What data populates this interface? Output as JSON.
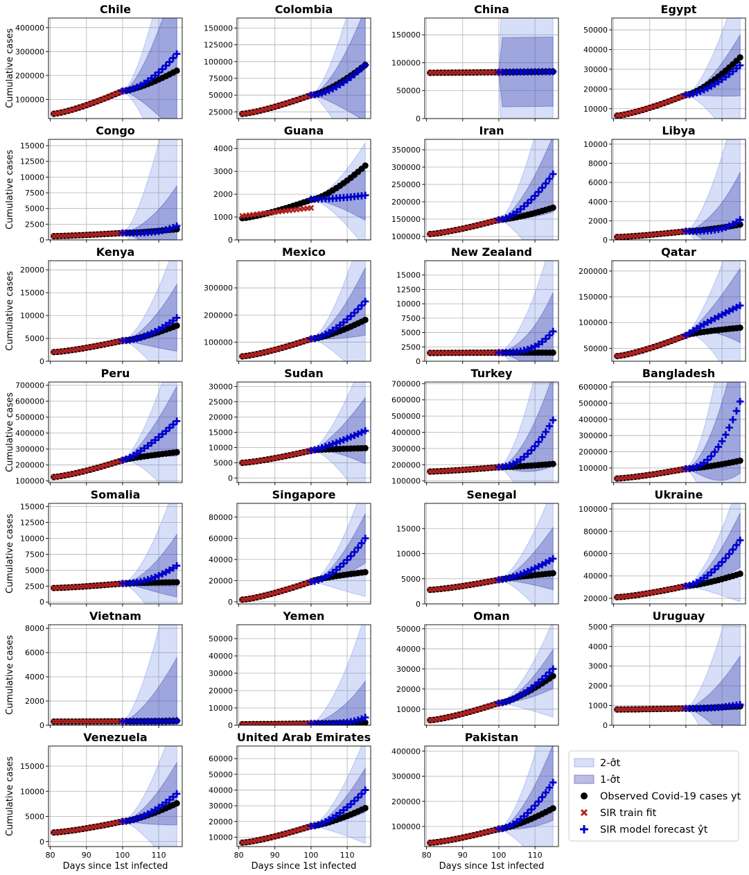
{
  "figure": {
    "ylabel": "Cumulative cases",
    "xlabel": "Days since 1st infected",
    "legend": {
      "placement": "bottom-right",
      "items": [
        {
          "key": "band2",
          "label": "2-σ̂t"
        },
        {
          "key": "band1",
          "label": "1-σ̂t"
        },
        {
          "key": "observed",
          "label": "Observed Covid-19 cases yt"
        },
        {
          "key": "train",
          "label": "SIR train fit"
        },
        {
          "key": "forecast",
          "label": "SIR model forecast ŷt"
        }
      ]
    },
    "colors": {
      "observed": "#000000",
      "train": "#b22222",
      "forecast": "#0000cd",
      "band1": "#2b33a6",
      "band2": "#6a8ae6"
    },
    "grid": true
  },
  "chart_data": [
    {
      "type": "line",
      "title": "Chile",
      "xlim": [
        79.5,
        116.5
      ],
      "ylim": [
        20000,
        440000
      ],
      "yticks": [
        100000,
        200000,
        300000,
        400000
      ],
      "xticks": [
        80,
        90,
        100,
        110
      ],
      "train_end": 100,
      "obs_start": 40000,
      "obs_mid": 135000,
      "obs_end": 220000,
      "fc_end": 290000,
      "b1": [
        200000,
        440000
      ],
      "b2": [
        290000,
        610000
      ],
      "curve": 1.7
    },
    {
      "type": "line",
      "title": "Colombia",
      "xlim": [
        79.5,
        116.5
      ],
      "ylim": [
        15000,
        165000
      ],
      "yticks": [
        25000,
        50000,
        75000,
        100000,
        125000,
        150000
      ],
      "xticks": [
        80,
        90,
        100,
        110
      ],
      "train_end": 100,
      "obs_start": 22000,
      "obs_mid": 50000,
      "obs_end": 95000,
      "fc_end": 95000,
      "b1": [
        40000,
        120000
      ],
      "b2": [
        60000,
        180000
      ],
      "curve": 1.7
    },
    {
      "type": "line",
      "title": "China",
      "xlim": [
        79.5,
        116.5
      ],
      "ylim": [
        0,
        180000
      ],
      "yticks": [
        0,
        50000,
        100000,
        150000
      ],
      "xticks": [
        80,
        90,
        100,
        110
      ],
      "train_end": 100,
      "obs_start": 82000,
      "obs_mid": 83000,
      "obs_end": 84000,
      "fc_end": 84000,
      "b1": [
        40000,
        80000
      ],
      "b2": [
        85000,
        170000
      ],
      "curve": 1.0,
      "flat_band": true
    },
    {
      "type": "line",
      "title": "Egypt",
      "xlim": [
        79.5,
        116.5
      ],
      "ylim": [
        5000,
        56000
      ],
      "yticks": [
        10000,
        20000,
        30000,
        40000,
        50000
      ],
      "xticks": [
        80,
        90,
        100,
        110
      ],
      "train_end": 100,
      "obs_start": 6500,
      "obs_mid": 17000,
      "obs_end": 36000,
      "fc_end": 32000,
      "b1": [
        10000,
        20000
      ],
      "b2": [
        20000,
        44000
      ],
      "curve": 1.6
    },
    {
      "type": "line",
      "title": "Congo",
      "xlim": [
        79.5,
        116.5
      ],
      "ylim": [
        0,
        16000
      ],
      "yticks": [
        0,
        2500,
        5000,
        7500,
        10000,
        12500,
        15000
      ],
      "xticks": [
        80,
        90,
        100,
        110
      ],
      "train_end": 100,
      "obs_start": 600,
      "obs_mid": 1100,
      "obs_end": 1700,
      "fc_end": 2200,
      "b1": [
        2000,
        10000
      ],
      "b2": [
        3500,
        26000
      ],
      "curve": 3.5
    },
    {
      "type": "line",
      "title": "Guana",
      "xlim": [
        79.5,
        116.5
      ],
      "ylim": [
        0,
        4400
      ],
      "yticks": [
        0,
        1000,
        2000,
        3000,
        4000
      ],
      "xticks": [
        80,
        90,
        100,
        110
      ],
      "train_end": 100,
      "obs_start": 950,
      "obs_mid": 1750,
      "obs_end": 3250,
      "fc_end": 1950,
      "fc_start": 1780,
      "train_start": 1050,
      "train_endval": 1400,
      "b1": [
        900,
        1250
      ],
      "b2": [
        2000,
        2300
      ],
      "curve": 1.8
    },
    {
      "type": "line",
      "title": "Iran",
      "xlim": [
        79.5,
        116.5
      ],
      "ylim": [
        90000,
        380000
      ],
      "yticks": [
        100000,
        150000,
        200000,
        250000,
        300000,
        350000
      ],
      "xticks": [
        80,
        90,
        100,
        110
      ],
      "train_end": 100,
      "obs_start": 107000,
      "obs_mid": 148000,
      "obs_end": 183000,
      "fc_end": 280000,
      "b1": [
        60000,
        150000
      ],
      "b2": [
        120000,
        320000
      ],
      "curve": 1.6
    },
    {
      "type": "line",
      "title": "Libya",
      "xlim": [
        79.5,
        116.5
      ],
      "ylim": [
        0,
        10500
      ],
      "yticks": [
        0,
        2000,
        4000,
        6000,
        8000,
        10000
      ],
      "xticks": [
        80,
        90,
        100,
        110
      ],
      "train_end": 100,
      "obs_start": 300,
      "obs_mid": 900,
      "obs_end": 1600,
      "fc_end": 2100,
      "b1": [
        2500,
        7000
      ],
      "b2": [
        4500,
        14000
      ],
      "curve": 3.5
    },
    {
      "type": "line",
      "title": "Kenya",
      "xlim": [
        79.5,
        116.5
      ],
      "ylim": [
        0,
        22000
      ],
      "yticks": [
        0,
        5000,
        10000,
        15000,
        20000
      ],
      "xticks": [
        80,
        90,
        100,
        110
      ],
      "train_end": 100,
      "obs_start": 2000,
      "obs_mid": 4500,
      "obs_end": 7800,
      "fc_end": 9500,
      "b1": [
        4000,
        10000
      ],
      "b2": [
        8000,
        17000
      ],
      "curve": 1.8
    },
    {
      "type": "line",
      "title": "Mexico",
      "xlim": [
        79.5,
        116.5
      ],
      "ylim": [
        30000,
        400000
      ],
      "yticks": [
        100000,
        200000,
        300000
      ],
      "xticks": [
        80,
        90,
        100,
        110
      ],
      "train_end": 100,
      "obs_start": 48000,
      "obs_mid": 112000,
      "obs_end": 182000,
      "fc_end": 250000,
      "b1": [
        80000,
        160000
      ],
      "b2": [
        140000,
        300000
      ],
      "curve": 1.6
    },
    {
      "type": "line",
      "title": "New Zealand",
      "xlim": [
        79.5,
        116.5
      ],
      "ylim": [
        0,
        17500
      ],
      "yticks": [
        0,
        2500,
        5000,
        7500,
        10000,
        12500,
        15000
      ],
      "xticks": [
        80,
        90,
        100,
        110
      ],
      "train_end": 100,
      "obs_start": 1450,
      "obs_mid": 1500,
      "obs_end": 1500,
      "fc_end": 5200,
      "b1": [
        4000,
        9000
      ],
      "b2": [
        7000,
        17000
      ],
      "curve": 3.0
    },
    {
      "type": "line",
      "title": "Qatar",
      "xlim": [
        79.5,
        116.5
      ],
      "ylim": [
        25000,
        220000
      ],
      "yticks": [
        50000,
        100000,
        150000,
        200000
      ],
      "xticks": [
        80,
        90,
        100,
        110
      ],
      "train_end": 100,
      "obs_start": 35000,
      "obs_mid": 75000,
      "obs_end": 90000,
      "fc_end": 133000,
      "b1": [
        50000,
        90000
      ],
      "b2": [
        90000,
        180000
      ],
      "curve": 0.9,
      "obs_curve": 0.7
    },
    {
      "type": "line",
      "title": "Peru",
      "xlim": [
        79.5,
        116.5
      ],
      "ylim": [
        90000,
        720000
      ],
      "yticks": [
        100000,
        200000,
        300000,
        400000,
        500000,
        600000,
        700000
      ],
      "xticks": [
        80,
        90,
        100,
        110
      ],
      "train_end": 100,
      "obs_start": 125000,
      "obs_mid": 230000,
      "obs_end": 280000,
      "fc_end": 475000,
      "b1": [
        120000,
        300000
      ],
      "b2": [
        250000,
        520000
      ],
      "curve": 1.3,
      "obs_curve": 0.8
    },
    {
      "type": "line",
      "title": "Sudan",
      "xlim": [
        79.5,
        116.5
      ],
      "ylim": [
        -1500,
        31500
      ],
      "yticks": [
        0,
        5000,
        10000,
        15000,
        20000,
        25000,
        30000
      ],
      "xticks": [
        80,
        90,
        100,
        110
      ],
      "train_end": 100,
      "obs_start": 5000,
      "obs_mid": 9000,
      "obs_end": 9800,
      "fc_end": 15500,
      "b1": [
        7000,
        14000
      ],
      "b2": [
        13000,
        25000
      ],
      "curve": 1.2,
      "obs_curve": 0.6
    },
    {
      "type": "line",
      "title": "Turkey",
      "xlim": [
        79.5,
        116.5
      ],
      "ylim": [
        90000,
        710000
      ],
      "yticks": [
        100000,
        200000,
        300000,
        400000,
        500000,
        600000,
        700000
      ],
      "xticks": [
        80,
        90,
        100,
        110
      ],
      "train_end": 100,
      "obs_start": 158000,
      "obs_mid": 185000,
      "obs_end": 205000,
      "fc_end": 475000,
      "b1": [
        160000,
        380000
      ],
      "b2": [
        300000,
        800000
      ],
      "curve": 2.0
    },
    {
      "type": "line",
      "title": "Bangladesh",
      "xlim": [
        79.5,
        116.5
      ],
      "ylim": [
        10000,
        630000
      ],
      "yticks": [
        100000,
        200000,
        300000,
        400000,
        500000,
        600000
      ],
      "xticks": [
        80,
        90,
        100,
        110
      ],
      "train_end": 100,
      "obs_start": 35000,
      "obs_mid": 95000,
      "obs_end": 145000,
      "fc_end": 510000,
      "b1": [
        250000,
        600000
      ],
      "b2": [
        500000,
        1100000
      ],
      "curve": 2.2
    },
    {
      "type": "line",
      "title": "Somalia",
      "xlim": [
        79.5,
        116.5
      ],
      "ylim": [
        -300,
        15500
      ],
      "yticks": [
        0,
        2500,
        5000,
        7500,
        10000,
        12500,
        15000
      ],
      "xticks": [
        80,
        90,
        100,
        110
      ],
      "train_end": 100,
      "obs_start": 2200,
      "obs_mid": 2900,
      "obs_end": 3100,
      "fc_end": 5700,
      "b1": [
        3000,
        6500
      ],
      "b2": [
        5500,
        13500
      ],
      "curve": 2.0,
      "obs_curve": 0.6
    },
    {
      "type": "line",
      "title": "Singapore",
      "xlim": [
        79.5,
        116.5
      ],
      "ylim": [
        -2000,
        93000
      ],
      "yticks": [
        0,
        20000,
        40000,
        60000,
        80000
      ],
      "xticks": [
        80,
        90,
        100,
        110
      ],
      "train_end": 100,
      "obs_start": 2000,
      "obs_mid": 19000,
      "obs_end": 28000,
      "fc_end": 60000,
      "b1": [
        15000,
        30000
      ],
      "b2": [
        25000,
        55000
      ],
      "curve": 1.7,
      "obs_curve": 0.7
    },
    {
      "type": "line",
      "title": "Senegal",
      "xlim": [
        79.5,
        116.5
      ],
      "ylim": [
        0,
        20000
      ],
      "yticks": [
        0,
        5000,
        10000,
        15000
      ],
      "xticks": [
        80,
        90,
        100,
        110
      ],
      "train_end": 100,
      "obs_start": 2800,
      "obs_mid": 4800,
      "obs_end": 6100,
      "fc_end": 9000,
      "b1": [
        4000,
        8000
      ],
      "b2": [
        7000,
        14000
      ],
      "curve": 1.5,
      "obs_curve": 0.8
    },
    {
      "type": "line",
      "title": "Ukraine",
      "xlim": [
        79.5,
        116.5
      ],
      "ylim": [
        15000,
        105000
      ],
      "yticks": [
        20000,
        40000,
        60000,
        80000,
        100000
      ],
      "xticks": [
        80,
        90,
        100,
        110
      ],
      "train_end": 100,
      "obs_start": 21000,
      "obs_mid": 31000,
      "obs_end": 42000,
      "fc_end": 72000,
      "b1": [
        15000,
        32000
      ],
      "b2": [
        25000,
        55000
      ],
      "curve": 1.6
    },
    {
      "type": "line",
      "title": "Vietnam",
      "xlim": [
        79.5,
        116.5
      ],
      "ylim": [
        0,
        8300
      ],
      "yticks": [
        0,
        2000,
        4000,
        6000,
        8000
      ],
      "xticks": [
        80,
        90,
        100,
        110
      ],
      "train_end": 100,
      "obs_start": 300,
      "obs_mid": 320,
      "obs_end": 350,
      "fc_end": 380,
      "b1": [
        3000,
        7000
      ],
      "b2": [
        6500,
        14000
      ],
      "curve": 4.5
    },
    {
      "type": "line",
      "title": "Yemen",
      "xlim": [
        79.5,
        116.5
      ],
      "ylim": [
        0,
        58000
      ],
      "yticks": [
        0,
        10000,
        20000,
        30000,
        40000,
        50000
      ],
      "xticks": [
        80,
        90,
        100,
        110
      ],
      "train_end": 100,
      "obs_start": 600,
      "obs_mid": 1000,
      "obs_end": 1500,
      "fc_end": 4500,
      "b1": [
        10000,
        30000
      ],
      "b2": [
        30000,
        60000
      ],
      "curve": 4.0
    },
    {
      "type": "line",
      "title": "Oman",
      "xlim": [
        79.5,
        116.5
      ],
      "ylim": [
        2000,
        52000
      ],
      "yticks": [
        10000,
        20000,
        30000,
        40000,
        50000
      ],
      "xticks": [
        80,
        90,
        100,
        110
      ],
      "train_end": 100,
      "obs_start": 4500,
      "obs_mid": 13000,
      "obs_end": 26500,
      "fc_end": 30000,
      "b1": [
        7000,
        12000
      ],
      "b2": [
        14000,
        24000
      ],
      "curve": 1.6
    },
    {
      "type": "line",
      "title": "Uruguay",
      "xlim": [
        79.5,
        116.5
      ],
      "ylim": [
        0,
        5100
      ],
      "yticks": [
        0,
        1000,
        2000,
        3000,
        4000,
        5000
      ],
      "xticks": [
        80,
        90,
        100,
        110
      ],
      "train_end": 100,
      "obs_start": 800,
      "obs_mid": 850,
      "obs_end": 960,
      "fc_end": 1050,
      "b1": [
        1800,
        3000
      ],
      "b2": [
        3600,
        7200
      ],
      "curve": 2.5
    },
    {
      "type": "line",
      "title": "Venezuela",
      "xlim": [
        79.5,
        116.5
      ],
      "ylim": [
        -1000,
        19000
      ],
      "yticks": [
        0,
        5000,
        10000,
        15000
      ],
      "xticks": [
        80,
        90,
        100,
        110
      ],
      "train_end": 100,
      "obs_start": 1800,
      "obs_mid": 4000,
      "obs_end": 7600,
      "fc_end": 9500,
      "b1": [
        4000,
        8000
      ],
      "b2": [
        8000,
        16000
      ],
      "curve": 1.7
    },
    {
      "type": "line",
      "title": "United Arab Emirates",
      "xlim": [
        79.5,
        116.5
      ],
      "ylim": [
        4000,
        68000
      ],
      "yticks": [
        10000,
        20000,
        30000,
        40000,
        50000,
        60000
      ],
      "xticks": [
        80,
        90,
        100,
        110
      ],
      "train_end": 100,
      "obs_start": 6500,
      "obs_mid": 17000,
      "obs_end": 28500,
      "fc_end": 40000,
      "b1": [
        9000,
        18000
      ],
      "b2": [
        16000,
        34000
      ],
      "curve": 1.6
    },
    {
      "type": "line",
      "title": "Pakistan",
      "xlim": [
        79.5,
        116.5
      ],
      "ylim": [
        20000,
        420000
      ],
      "yticks": [
        100000,
        200000,
        300000,
        400000
      ],
      "xticks": [
        80,
        90,
        100,
        110
      ],
      "train_end": 100,
      "obs_start": 35000,
      "obs_mid": 90000,
      "obs_end": 172000,
      "fc_end": 275000,
      "b1": [
        90000,
        200000
      ],
      "b2": [
        150000,
        380000
      ],
      "curve": 1.7
    }
  ]
}
